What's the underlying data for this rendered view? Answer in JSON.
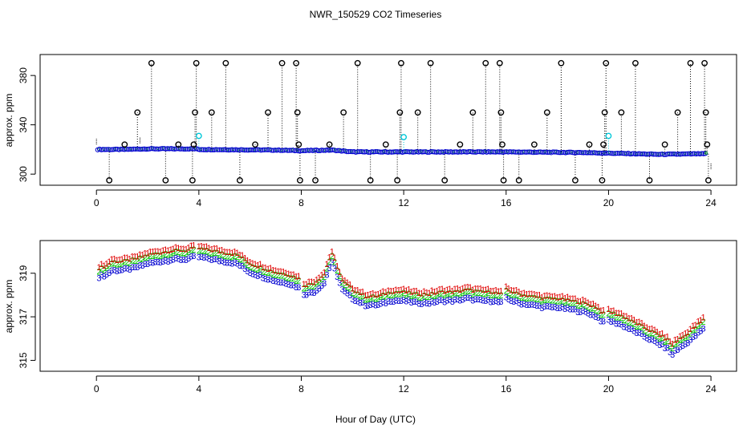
{
  "title": "NWR_150529  CO2 Timeseries",
  "xlabel": "Hour of Day (UTC)",
  "colors": {
    "s1": "#e00000",
    "s2": "#00c000",
    "s3": "#0000d0",
    "cyan": "#00c8d8",
    "black": "#000000"
  },
  "chart_data": [
    {
      "type": "scatter",
      "name": "top-panel",
      "ylabel": "approx. ppm",
      "xlim": [
        -2.2,
        25
      ],
      "ylim": [
        291,
        397
      ],
      "xticks": [
        0,
        4,
        8,
        12,
        16,
        20,
        24
      ],
      "yticks": [
        300,
        340,
        380
      ],
      "ytick_labels": [
        "300",
        "340",
        "380"
      ],
      "xtick_labels": [
        "0",
        "4",
        "8",
        "12",
        "16",
        "20",
        "24"
      ],
      "baseline": [
        [
          0,
          320
        ],
        [
          1,
          320
        ],
        [
          2,
          320.5
        ],
        [
          3,
          320.5
        ],
        [
          3.9,
          320.5
        ],
        [
          4,
          320
        ],
        [
          7,
          319.5
        ],
        [
          8,
          319
        ],
        [
          9.2,
          319.5
        ],
        [
          10,
          318
        ],
        [
          12,
          318
        ],
        [
          16,
          318
        ],
        [
          19,
          317.5
        ],
        [
          20,
          317
        ],
        [
          22,
          316
        ],
        [
          23.8,
          316.5
        ]
      ],
      "dense_series": "s3",
      "outliers": [
        {
          "x": 0.5,
          "y": 295
        },
        {
          "x": 1.1,
          "y": 324
        },
        {
          "x": 1.6,
          "y": 350
        },
        {
          "x": 2.15,
          "y": 390
        },
        {
          "x": 2.7,
          "y": 295
        },
        {
          "x": 3.2,
          "y": 324
        },
        {
          "x": 3.75,
          "y": 295
        },
        {
          "x": 3.8,
          "y": 324
        },
        {
          "x": 3.85,
          "y": 350
        },
        {
          "x": 3.9,
          "y": 390
        },
        {
          "x": 4.5,
          "y": 350
        },
        {
          "x": 5.05,
          "y": 390
        },
        {
          "x": 5.6,
          "y": 295
        },
        {
          "x": 6.2,
          "y": 324
        },
        {
          "x": 6.7,
          "y": 350
        },
        {
          "x": 7.25,
          "y": 390
        },
        {
          "x": 7.8,
          "y": 390
        },
        {
          "x": 7.85,
          "y": 350
        },
        {
          "x": 7.9,
          "y": 324
        },
        {
          "x": 7.95,
          "y": 295
        },
        {
          "x": 8.55,
          "y": 295
        },
        {
          "x": 9.1,
          "y": 324
        },
        {
          "x": 9.65,
          "y": 350
        },
        {
          "x": 10.2,
          "y": 390
        },
        {
          "x": 10.7,
          "y": 295
        },
        {
          "x": 11.3,
          "y": 324
        },
        {
          "x": 11.75,
          "y": 295
        },
        {
          "x": 11.85,
          "y": 350
        },
        {
          "x": 11.9,
          "y": 390
        },
        {
          "x": 12.55,
          "y": 350
        },
        {
          "x": 13.05,
          "y": 390
        },
        {
          "x": 13.6,
          "y": 295
        },
        {
          "x": 14.2,
          "y": 324
        },
        {
          "x": 14.7,
          "y": 350
        },
        {
          "x": 15.2,
          "y": 390
        },
        {
          "x": 15.75,
          "y": 390
        },
        {
          "x": 15.8,
          "y": 350
        },
        {
          "x": 15.85,
          "y": 324
        },
        {
          "x": 15.9,
          "y": 295
        },
        {
          "x": 16.5,
          "y": 295
        },
        {
          "x": 17.1,
          "y": 324
        },
        {
          "x": 17.6,
          "y": 350
        },
        {
          "x": 18.15,
          "y": 390
        },
        {
          "x": 18.7,
          "y": 295
        },
        {
          "x": 19.25,
          "y": 324
        },
        {
          "x": 19.75,
          "y": 295
        },
        {
          "x": 19.8,
          "y": 324
        },
        {
          "x": 19.85,
          "y": 350
        },
        {
          "x": 19.9,
          "y": 390
        },
        {
          "x": 20.5,
          "y": 350
        },
        {
          "x": 21.05,
          "y": 390
        },
        {
          "x": 21.6,
          "y": 295
        },
        {
          "x": 22.2,
          "y": 324
        },
        {
          "x": 22.7,
          "y": 350
        },
        {
          "x": 23.2,
          "y": 390
        },
        {
          "x": 23.75,
          "y": 390
        },
        {
          "x": 23.8,
          "y": 350
        },
        {
          "x": 23.85,
          "y": 324
        },
        {
          "x": 23.9,
          "y": 295
        }
      ],
      "cyan_points": [
        {
          "x": 4.0,
          "y": 331
        },
        {
          "x": 12.0,
          "y": 330
        },
        {
          "x": 20.0,
          "y": 331
        }
      ],
      "small_ticks": [
        {
          "x": 0.0,
          "y": 326
        },
        {
          "x": 1.7,
          "y": 327
        },
        {
          "x": 24.0,
          "y": 306
        }
      ]
    },
    {
      "type": "scatter",
      "name": "bottom-panel",
      "ylabel": "approx. ppm",
      "xlim": [
        -2.2,
        25
      ],
      "ylim": [
        314.5,
        320.5
      ],
      "xticks": [
        0,
        4,
        8,
        12,
        16,
        20,
        24
      ],
      "yticks": [
        315,
        317,
        319
      ],
      "ytick_labels": [
        "315",
        "317",
        "319"
      ],
      "xtick_labels": [
        "0",
        "4",
        "8",
        "12",
        "16",
        "20",
        "24"
      ],
      "series_labels": [
        "1",
        "2",
        "3"
      ],
      "offsets": [
        0.35,
        0.15,
        -0.15
      ],
      "segments": [
        [
          [
            0.1,
            319.0
          ],
          [
            0.4,
            319.1
          ],
          [
            0.6,
            319.3
          ],
          [
            1.0,
            319.3
          ],
          [
            1.5,
            319.4
          ],
          [
            2.0,
            319.6
          ],
          [
            2.5,
            319.7
          ],
          [
            3.0,
            319.8
          ],
          [
            3.5,
            319.8
          ],
          [
            3.8,
            319.9
          ]
        ],
        [
          [
            4.0,
            319.9
          ],
          [
            4.5,
            319.8
          ],
          [
            5.0,
            319.7
          ],
          [
            5.5,
            319.6
          ],
          [
            6.0,
            319.2
          ],
          [
            6.5,
            319.0
          ],
          [
            7.0,
            318.8
          ],
          [
            7.5,
            318.7
          ],
          [
            7.9,
            318.5
          ]
        ],
        [
          [
            8.1,
            318.2
          ],
          [
            8.5,
            318.3
          ],
          [
            8.9,
            318.7
          ],
          [
            9.05,
            319.3
          ],
          [
            9.2,
            319.6
          ],
          [
            9.35,
            319.2
          ],
          [
            9.6,
            318.4
          ],
          [
            10.0,
            318.0
          ],
          [
            10.5,
            317.7
          ],
          [
            11.0,
            317.7
          ],
          [
            11.5,
            317.9
          ],
          [
            11.9,
            317.9
          ]
        ],
        [
          [
            12.0,
            317.9
          ],
          [
            12.5,
            317.8
          ],
          [
            13.0,
            317.8
          ],
          [
            13.5,
            317.9
          ],
          [
            14.0,
            317.9
          ],
          [
            14.5,
            318.0
          ],
          [
            15.0,
            317.9
          ],
          [
            15.5,
            317.9
          ],
          [
            15.8,
            317.8
          ]
        ],
        [
          [
            16.0,
            318.0
          ],
          [
            16.5,
            317.8
          ],
          [
            17.0,
            317.7
          ],
          [
            17.5,
            317.6
          ],
          [
            18.0,
            317.6
          ],
          [
            18.5,
            317.5
          ],
          [
            19.0,
            317.4
          ],
          [
            19.5,
            317.2
          ],
          [
            19.8,
            316.9
          ]
        ],
        [
          [
            20.0,
            317.0
          ],
          [
            20.5,
            316.8
          ],
          [
            21.0,
            316.5
          ],
          [
            21.5,
            316.2
          ],
          [
            22.0,
            315.9
          ],
          [
            22.3,
            315.7
          ],
          [
            22.5,
            315.4
          ]
        ],
        [
          [
            22.6,
            315.6
          ],
          [
            23.0,
            315.9
          ],
          [
            23.3,
            316.2
          ],
          [
            23.5,
            316.4
          ],
          [
            23.7,
            316.6
          ]
        ]
      ]
    }
  ]
}
